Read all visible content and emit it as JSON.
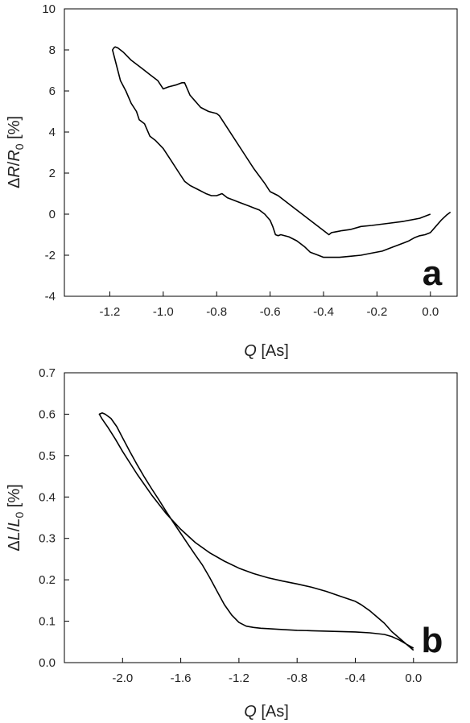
{
  "chart_data": [
    {
      "type": "line",
      "panel_label": "a",
      "x_label": {
        "italic": "Q",
        "rest": " [As]"
      },
      "y_label": {
        "d1": "Δ",
        "v1": "R",
        "slash": "/",
        "v2": "R",
        "sub": "0",
        "rest": " [%]"
      },
      "xlim": [
        -1.37,
        0.1
      ],
      "ylim": [
        -4,
        10
      ],
      "xticks": [
        -1.2,
        -1.0,
        -0.8,
        -0.6,
        -0.4,
        -0.2,
        0.0
      ],
      "xtick_labels": [
        "-1.2",
        "-1.0",
        "-0.8",
        "-0.6",
        "-0.4",
        "-0.2",
        "0.0"
      ],
      "yticks": [
        -4,
        -2,
        0,
        2,
        4,
        6,
        8,
        10
      ],
      "ytick_labels": [
        "-4",
        "-2",
        "0",
        "2",
        "4",
        "6",
        "8",
        "10"
      ],
      "grid": false,
      "series": [
        {
          "color": "#000000",
          "x": [
            0.0,
            -0.04,
            -0.1,
            -0.16,
            -0.22,
            -0.26,
            -0.3,
            -0.33,
            -0.35,
            -0.37,
            -0.38,
            -0.43,
            -0.48,
            -0.53,
            -0.57,
            -0.6,
            -0.62,
            -0.66,
            -0.7,
            -0.74,
            -0.77,
            -0.79,
            -0.8,
            -0.83,
            -0.86,
            -0.88,
            -0.9,
            -0.92,
            -0.93,
            -0.95,
            -0.98,
            -1.0,
            -1.02,
            -1.05,
            -1.08,
            -1.12,
            -1.15,
            -1.17,
            -1.18,
            -1.185,
            -1.19,
            -1.17,
            -1.16,
            -1.14,
            -1.12,
            -1.1,
            -1.09,
            -1.07,
            -1.05,
            -1.03,
            -1.0,
            -0.97,
            -0.94,
            -0.92,
            -0.9,
            -0.87,
            -0.84,
            -0.82,
            -0.8,
            -0.78,
            -0.76,
            -0.74,
            -0.72,
            -0.7,
            -0.68,
            -0.66,
            -0.64,
            -0.62,
            -0.6,
            -0.59,
            -0.58,
            -0.57,
            -0.56,
            -0.53,
            -0.5,
            -0.47,
            -0.45,
            -0.42,
            -0.4,
            -0.37,
            -0.34,
            -0.3,
            -0.26,
            -0.22,
            -0.18,
            -0.14,
            -0.12,
            -0.1,
            -0.08,
            -0.06,
            -0.04,
            -0.02,
            0.0,
            0.02,
            0.04,
            0.06,
            0.075
          ],
          "y": [
            0.0,
            -0.2,
            -0.35,
            -0.45,
            -0.55,
            -0.6,
            -0.75,
            -0.8,
            -0.85,
            -0.9,
            -1.0,
            -0.5,
            0.0,
            0.5,
            0.9,
            1.1,
            1.5,
            2.2,
            3.0,
            3.8,
            4.4,
            4.8,
            4.9,
            5.0,
            5.2,
            5.5,
            5.8,
            6.4,
            6.4,
            6.3,
            6.2,
            6.1,
            6.5,
            6.8,
            7.1,
            7.5,
            7.9,
            8.1,
            8.15,
            8.1,
            8.0,
            7.0,
            6.5,
            6.0,
            5.4,
            5.0,
            4.6,
            4.4,
            3.8,
            3.6,
            3.2,
            2.6,
            2.0,
            1.6,
            1.4,
            1.2,
            1.0,
            0.9,
            0.9,
            1.0,
            0.8,
            0.7,
            0.6,
            0.5,
            0.4,
            0.3,
            0.2,
            0.0,
            -0.3,
            -0.6,
            -1.0,
            -1.05,
            -1.0,
            -1.1,
            -1.3,
            -1.6,
            -1.85,
            -2.0,
            -2.1,
            -2.1,
            -2.1,
            -2.05,
            -2.0,
            -1.9,
            -1.8,
            -1.6,
            -1.5,
            -1.4,
            -1.3,
            -1.15,
            -1.05,
            -1.0,
            -0.9,
            -0.6,
            -0.3,
            -0.05,
            0.1
          ]
        }
      ]
    },
    {
      "type": "line",
      "panel_label": "b",
      "x_label": {
        "italic": "Q",
        "rest": " [As]"
      },
      "y_label": {
        "d1": "Δ",
        "v1": "L",
        "slash": "/",
        "v2": "L",
        "sub": "0",
        "rest": " [%]"
      },
      "xlim": [
        -2.4,
        0.3
      ],
      "ylim": [
        0.0,
        0.7
      ],
      "xticks": [
        -2.0,
        -1.6,
        -1.2,
        -0.8,
        -0.4,
        0.0
      ],
      "xtick_labels": [
        "-2.0",
        "-1.6",
        "-1.2",
        "-0.8",
        "-0.4",
        "0.0"
      ],
      "yticks": [
        0.0,
        0.1,
        0.2,
        0.3,
        0.4,
        0.5,
        0.6,
        0.7
      ],
      "ytick_labels": [
        "0.0",
        "0.1",
        "0.2",
        "0.3",
        "0.4",
        "0.5",
        "0.6",
        "0.7"
      ],
      "grid": false,
      "series": [
        {
          "color": "#000000",
          "x": [
            0.0,
            -0.05,
            -0.1,
            -0.15,
            -0.2,
            -0.25,
            -0.3,
            -0.36,
            -0.4,
            -0.5,
            -0.6,
            -0.7,
            -0.8,
            -0.9,
            -1.0,
            -1.1,
            -1.2,
            -1.3,
            -1.4,
            -1.5,
            -1.6,
            -1.7,
            -1.8,
            -1.9,
            -2.0,
            -2.05,
            -2.1,
            -2.14,
            -2.16,
            -2.14,
            -2.12,
            -2.08,
            -2.04,
            -2.0,
            -1.95,
            -1.9,
            -1.85,
            -1.8,
            -1.75,
            -1.7,
            -1.65,
            -1.6,
            -1.55,
            -1.5,
            -1.45,
            -1.4,
            -1.35,
            -1.3,
            -1.25,
            -1.2,
            -1.15,
            -1.1,
            -1.05,
            -1.0,
            -0.9,
            -0.8,
            -0.7,
            -0.6,
            -0.5,
            -0.4,
            -0.3,
            -0.2,
            -0.15,
            -0.1,
            -0.05,
            0.0
          ],
          "y": [
            0.035,
            0.045,
            0.06,
            0.075,
            0.095,
            0.11,
            0.125,
            0.14,
            0.148,
            0.16,
            0.172,
            0.182,
            0.19,
            0.197,
            0.205,
            0.215,
            0.228,
            0.245,
            0.265,
            0.29,
            0.322,
            0.36,
            0.405,
            0.455,
            0.51,
            0.54,
            0.568,
            0.588,
            0.6,
            0.603,
            0.6,
            0.59,
            0.57,
            0.543,
            0.51,
            0.478,
            0.448,
            0.42,
            0.393,
            0.365,
            0.338,
            0.312,
            0.286,
            0.26,
            0.235,
            0.205,
            0.172,
            0.14,
            0.115,
            0.097,
            0.088,
            0.085,
            0.083,
            0.082,
            0.08,
            0.078,
            0.077,
            0.076,
            0.075,
            0.074,
            0.072,
            0.068,
            0.063,
            0.055,
            0.045,
            0.03
          ]
        }
      ]
    }
  ]
}
